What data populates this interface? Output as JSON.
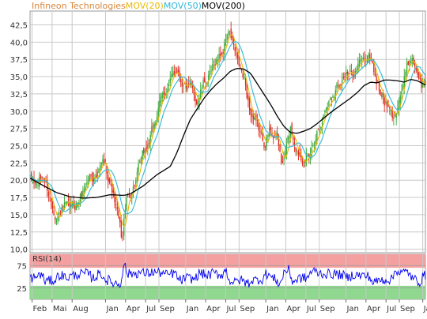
{
  "chart_data": [
    {
      "type": "candlestick",
      "title_parts": [
        {
          "text": "Infineon Technologies",
          "color": "#d8863a"
        },
        {
          "text": "MOV(20)",
          "color": "#e8b800"
        },
        {
          "text": "MOV(50)",
          "color": "#2fb8d8"
        },
        {
          "text": "MOV(200)",
          "color": "#000000"
        }
      ],
      "y_ticks": [
        "10,0",
        "12,5",
        "15,0",
        "17,5",
        "20,0",
        "22,5",
        "25,0",
        "27,5",
        "30,0",
        "32,5",
        "35,0",
        "37,5",
        "40,0",
        "42,5"
      ],
      "ylim": [
        9.5,
        44.5
      ],
      "grid": true,
      "x_tick_labels": [
        "Feb",
        "Mai",
        "Aug",
        "Jan",
        "Apr",
        "Jul",
        "Sep",
        "Jan",
        "Apr",
        "Jul",
        "Sep",
        "Jan",
        "Apr",
        "Jul",
        "Sep",
        "Jan",
        "Apr",
        "Jul",
        "Sep",
        "Ja"
      ],
      "x_tick_positions": [
        0.3,
        3.3,
        6.3,
        11.3,
        14.3,
        17.3,
        19.3,
        23.3,
        26.3,
        29.3,
        31.3,
        35.3,
        38.3,
        41.3,
        43.3,
        47.3,
        50.3,
        53.3,
        55.3,
        58.8
      ],
      "x_range": [
        0,
        59.2
      ],
      "x_unit": "months since Feb of first year (approx.)",
      "price_anchors": [
        [
          0,
          20.0
        ],
        [
          1,
          19.2
        ],
        [
          2,
          20.6
        ],
        [
          3,
          17.5
        ],
        [
          4,
          14.8
        ],
        [
          5,
          16.0
        ],
        [
          6,
          15.6
        ],
        [
          7,
          16.5
        ],
        [
          8,
          18.6
        ],
        [
          9,
          21.0
        ],
        [
          10,
          20.5
        ],
        [
          11,
          22.5
        ],
        [
          12,
          20.0
        ],
        [
          13,
          15.5
        ],
        [
          13.8,
          11.0
        ],
        [
          14.3,
          16.5
        ],
        [
          15,
          18.0
        ],
        [
          16,
          20.5
        ],
        [
          17,
          23.5
        ],
        [
          18,
          26.0
        ],
        [
          19,
          29.5
        ],
        [
          20,
          32.5
        ],
        [
          21,
          34.0
        ],
        [
          22,
          36.5
        ],
        [
          23,
          34.0
        ],
        [
          24,
          33.0
        ],
        [
          25,
          31.5
        ],
        [
          26,
          34.0
        ],
        [
          27,
          35.0
        ],
        [
          28,
          37.5
        ],
        [
          29,
          39.0
        ],
        [
          29.6,
          42.0
        ],
        [
          30.3,
          40.0
        ],
        [
          31,
          37.0
        ],
        [
          32,
          34.5
        ],
        [
          33,
          30.0
        ],
        [
          34,
          27.5
        ],
        [
          35,
          25.5
        ],
        [
          36,
          27.5
        ],
        [
          37,
          26.0
        ],
        [
          37.8,
          22.0
        ],
        [
          38.5,
          25.0
        ],
        [
          39,
          27.5
        ],
        [
          40,
          24.5
        ],
        [
          41,
          23.5
        ],
        [
          41.8,
          22.8
        ],
        [
          42.5,
          25.5
        ],
        [
          43,
          27.5
        ],
        [
          44,
          30.0
        ],
        [
          45,
          32.0
        ],
        [
          46,
          34.0
        ],
        [
          47,
          35.5
        ],
        [
          48,
          35.0
        ],
        [
          49,
          36.5
        ],
        [
          50,
          37.5
        ],
        [
          51,
          38.0
        ],
        [
          52,
          34.0
        ],
        [
          53,
          31.5
        ],
        [
          54,
          29.5
        ],
        [
          54.5,
          28.5
        ],
        [
          55,
          31.5
        ],
        [
          56,
          34.5
        ],
        [
          57,
          38.0
        ],
        [
          58,
          36.0
        ],
        [
          58.7,
          33.5
        ],
        [
          59.2,
          34.0
        ]
      ],
      "ma200_anchors": [
        [
          0,
          20.3
        ],
        [
          2,
          19.2
        ],
        [
          4,
          18.2
        ],
        [
          6,
          17.6
        ],
        [
          8,
          17.4
        ],
        [
          10,
          17.5
        ],
        [
          12,
          17.9
        ],
        [
          14,
          17.8
        ],
        [
          15,
          18.0
        ],
        [
          17,
          19.2
        ],
        [
          19,
          20.8
        ],
        [
          21,
          22.0
        ],
        [
          22,
          24.0
        ],
        [
          23,
          26.5
        ],
        [
          24,
          28.8
        ],
        [
          25,
          30.3
        ],
        [
          26,
          31.8
        ],
        [
          27,
          33.0
        ],
        [
          28,
          34.0
        ],
        [
          29,
          34.8
        ],
        [
          30,
          35.8
        ],
        [
          31,
          36.2
        ],
        [
          32,
          36.1
        ],
        [
          33,
          35.5
        ],
        [
          34,
          34.0
        ],
        [
          35,
          32.5
        ],
        [
          36,
          31.0
        ],
        [
          37,
          29.3
        ],
        [
          38,
          27.8
        ],
        [
          39,
          26.9
        ],
        [
          40,
          26.8
        ],
        [
          41,
          27.1
        ],
        [
          42,
          27.5
        ],
        [
          43,
          28.2
        ],
        [
          44,
          29.0
        ],
        [
          45,
          29.8
        ],
        [
          46,
          30.5
        ],
        [
          47,
          31.2
        ],
        [
          48,
          31.9
        ],
        [
          49,
          32.7
        ],
        [
          50,
          33.7
        ],
        [
          51,
          34.2
        ],
        [
          52,
          34.1
        ],
        [
          53,
          34.5
        ],
        [
          54,
          34.5
        ],
        [
          55,
          34.4
        ],
        [
          56,
          34.2
        ],
        [
          57,
          34.6
        ],
        [
          58,
          34.4
        ],
        [
          59.2,
          33.8
        ]
      ],
      "series": [
        {
          "name": "MOV(20)",
          "color": "#e8b800",
          "role": "moving-average-20"
        },
        {
          "name": "MOV(50)",
          "color": "#2fb8d8",
          "role": "moving-average-50"
        },
        {
          "name": "MOV(200)",
          "color": "#000000",
          "role": "moving-average-200"
        }
      ],
      "candle_colors": {
        "up": "#3aa83a",
        "down": "#e0281e"
      }
    },
    {
      "type": "line",
      "title": "RSI(14)",
      "y_ticks": [
        "25",
        "75"
      ],
      "ylim": [
        0,
        100
      ],
      "bands": [
        {
          "from": 70,
          "to": 100,
          "color": "#f5a0a0"
        },
        {
          "from": 0,
          "to": 30,
          "color": "#90d890"
        }
      ],
      "series": [
        {
          "name": "RSI(14)",
          "color": "#0000ee"
        }
      ]
    }
  ]
}
